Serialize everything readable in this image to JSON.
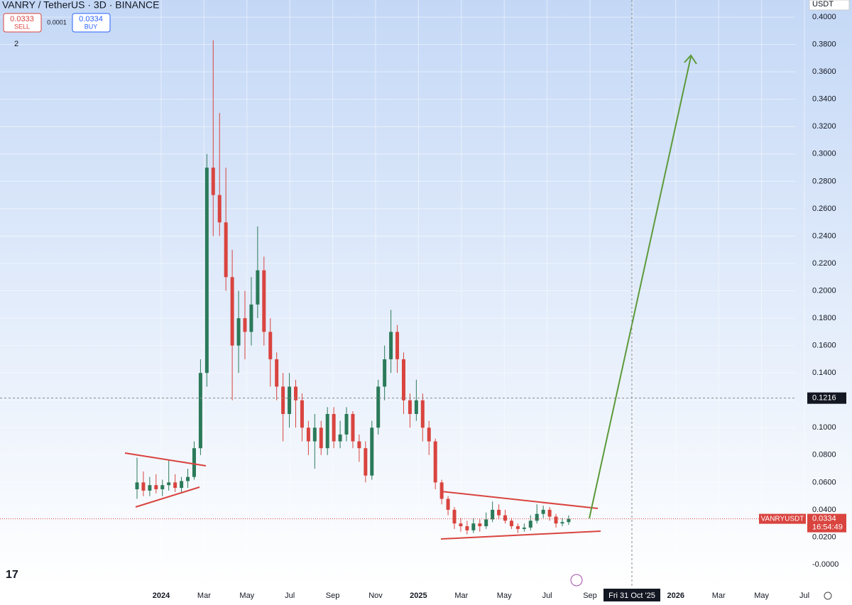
{
  "header": {
    "symbol": "VANRY / TetherUS · 3D · BINANCE",
    "sell_price": 0.0333,
    "sell_label": "SELL",
    "spread": 0.0001,
    "buy_price": 0.0334,
    "buy_label": "BUY",
    "indicator_count": 2,
    "currency": "USDT",
    "logo": "17"
  },
  "chart_data": {
    "type": "candlestick",
    "ylim": [
      -0.0166,
      0.4125
    ],
    "yticks": [
      {
        "value": 0.4,
        "label": "0.4000"
      },
      {
        "value": 0.38,
        "label": "0.3800"
      },
      {
        "value": 0.36,
        "label": "0.3600"
      },
      {
        "value": 0.34,
        "label": "0.3400"
      },
      {
        "value": 0.32,
        "label": "0.3200"
      },
      {
        "value": 0.3,
        "label": "0.3000"
      },
      {
        "value": 0.28,
        "label": "0.2800"
      },
      {
        "value": 0.26,
        "label": "0.2600"
      },
      {
        "value": 0.24,
        "label": "0.2400"
      },
      {
        "value": 0.22,
        "label": "0.2200"
      },
      {
        "value": 0.2,
        "label": "0.2000"
      },
      {
        "value": 0.18,
        "label": "0.1800"
      },
      {
        "value": 0.16,
        "label": "0.1600"
      },
      {
        "value": 0.14,
        "label": "0.1400"
      },
      {
        "value": 0.12,
        "label": "0.1200"
      },
      {
        "value": 0.1,
        "label": "0.1000"
      },
      {
        "value": 0.08,
        "label": "0.0800"
      },
      {
        "value": 0.06,
        "label": "0.0600"
      },
      {
        "value": 0.04,
        "label": "0.0400"
      },
      {
        "value": 0.02,
        "label": "0.0200"
      },
      {
        "value": 0,
        "label": "-0.0000"
      }
    ],
    "x_labels": [
      "2024",
      "Mar",
      "May",
      "Jul",
      "Sep",
      "Nov",
      "2025",
      "Mar",
      "May",
      "Jul",
      "Sep",
      null,
      "2026",
      "Mar",
      "May",
      "Jul"
    ],
    "up_color": "#2b7a5a",
    "down_color": "#d9443f",
    "candles": [
      [
        0.055,
        0.078,
        0.048,
        0.06
      ],
      [
        0.06,
        0.068,
        0.05,
        0.054
      ],
      [
        0.054,
        0.064,
        0.05,
        0.058
      ],
      [
        0.058,
        0.066,
        0.052,
        0.055
      ],
      [
        0.055,
        0.062,
        0.05,
        0.058
      ],
      [
        0.058,
        0.076,
        0.054,
        0.06
      ],
      [
        0.06,
        0.066,
        0.053,
        0.056
      ],
      [
        0.056,
        0.064,
        0.052,
        0.061
      ],
      [
        0.061,
        0.07,
        0.056,
        0.064
      ],
      [
        0.064,
        0.09,
        0.062,
        0.085
      ],
      [
        0.085,
        0.15,
        0.08,
        0.14
      ],
      [
        0.14,
        0.3,
        0.13,
        0.29
      ],
      [
        0.29,
        0.383,
        0.24,
        0.27
      ],
      [
        0.27,
        0.33,
        0.24,
        0.25
      ],
      [
        0.25,
        0.29,
        0.2,
        0.21
      ],
      [
        0.21,
        0.23,
        0.12,
        0.16
      ],
      [
        0.16,
        0.2,
        0.14,
        0.18
      ],
      [
        0.18,
        0.2,
        0.15,
        0.17
      ],
      [
        0.17,
        0.21,
        0.16,
        0.19
      ],
      [
        0.19,
        0.247,
        0.18,
        0.215
      ],
      [
        0.215,
        0.225,
        0.16,
        0.17
      ],
      [
        0.17,
        0.18,
        0.13,
        0.15
      ],
      [
        0.15,
        0.155,
        0.12,
        0.13
      ],
      [
        0.13,
        0.14,
        0.09,
        0.11
      ],
      [
        0.11,
        0.14,
        0.1,
        0.13
      ],
      [
        0.13,
        0.135,
        0.1,
        0.12
      ],
      [
        0.12,
        0.125,
        0.09,
        0.1
      ],
      [
        0.1,
        0.105,
        0.08,
        0.09
      ],
      [
        0.09,
        0.11,
        0.07,
        0.1
      ],
      [
        0.1,
        0.105,
        0.08,
        0.085
      ],
      [
        0.085,
        0.115,
        0.08,
        0.11
      ],
      [
        0.11,
        0.115,
        0.085,
        0.09
      ],
      [
        0.09,
        0.105,
        0.085,
        0.095
      ],
      [
        0.095,
        0.115,
        0.09,
        0.11
      ],
      [
        0.11,
        0.112,
        0.085,
        0.09
      ],
      [
        0.09,
        0.095,
        0.075,
        0.085
      ],
      [
        0.085,
        0.09,
        0.06,
        0.065
      ],
      [
        0.065,
        0.105,
        0.062,
        0.1
      ],
      [
        0.1,
        0.135,
        0.095,
        0.13
      ],
      [
        0.13,
        0.16,
        0.12,
        0.15
      ],
      [
        0.15,
        0.186,
        0.14,
        0.17
      ],
      [
        0.17,
        0.175,
        0.14,
        0.15
      ],
      [
        0.15,
        0.155,
        0.11,
        0.12
      ],
      [
        0.12,
        0.125,
        0.1,
        0.11
      ],
      [
        0.11,
        0.135,
        0.105,
        0.12
      ],
      [
        0.12,
        0.125,
        0.09,
        0.1
      ],
      [
        0.1,
        0.105,
        0.08,
        0.09
      ],
      [
        0.09,
        0.092,
        0.055,
        0.06
      ],
      [
        0.06,
        0.062,
        0.044,
        0.048
      ],
      [
        0.048,
        0.05,
        0.036,
        0.04
      ],
      [
        0.04,
        0.042,
        0.026,
        0.03
      ],
      [
        0.03,
        0.034,
        0.024,
        0.028
      ],
      [
        0.028,
        0.032,
        0.022,
        0.025
      ],
      [
        0.025,
        0.034,
        0.023,
        0.03
      ],
      [
        0.03,
        0.033,
        0.024,
        0.028
      ],
      [
        0.028,
        0.038,
        0.026,
        0.033
      ],
      [
        0.033,
        0.046,
        0.031,
        0.04
      ],
      [
        0.04,
        0.044,
        0.033,
        0.036
      ],
      [
        0.036,
        0.04,
        0.03,
        0.032
      ],
      [
        0.032,
        0.034,
        0.026,
        0.028
      ],
      [
        0.028,
        0.03,
        0.023,
        0.026
      ],
      [
        0.026,
        0.03,
        0.024,
        0.027
      ],
      [
        0.027,
        0.036,
        0.025,
        0.032
      ],
      [
        0.032,
        0.044,
        0.03,
        0.037
      ],
      [
        0.037,
        0.043,
        0.034,
        0.04
      ],
      [
        0.04,
        0.042,
        0.032,
        0.035
      ],
      [
        0.035,
        0.037,
        0.027,
        0.03
      ],
      [
        0.03,
        0.034,
        0.028,
        0.031
      ],
      [
        0.031,
        0.036,
        0.029,
        0.0334
      ]
    ],
    "last_price": 0.0334,
    "last_symbol": "VANRYUSDT",
    "countdown": "16:54:49",
    "crosshair_price": 0.1216,
    "crosshair_time": "Fri 31 Oct '25"
  }
}
